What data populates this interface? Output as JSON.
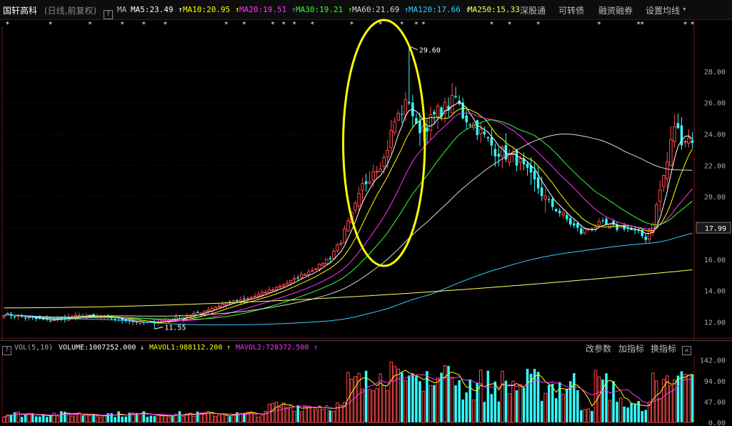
{
  "header": {
    "stock_name": "国轩高科",
    "period": "(日线,前复权)",
    "help": "?",
    "ma_label": "MA",
    "ma": [
      {
        "label": "MA5:23.49",
        "color": "#ffffff",
        "arrow": "↑"
      },
      {
        "label": "MA10:20.95",
        "color": "#ffff00",
        "arrow": "↑"
      },
      {
        "label": "MA20:19.51",
        "color": "#ff33ff",
        "arrow": "↑"
      },
      {
        "label": "MA30:19.21",
        "color": "#33ff33",
        "arrow": "↑"
      },
      {
        "label": "MA60:21.69",
        "color": "#d8d8d8",
        "arrow": "↑"
      },
      {
        "label": "MA120:17.66",
        "color": "#33ccff",
        "arrow": "↑"
      },
      {
        "label": "MA250:15.33",
        "color": "#ffff66",
        "arrow": ""
      }
    ],
    "tabs": [
      "深股通",
      "可转债",
      "融资融券",
      "设置均线"
    ],
    "dropdown_caret": "▾"
  },
  "volume_header": {
    "help": "?",
    "vol_label": "VOL(5,10)",
    "volume": "VOLUME:1007252.000",
    "volume_arrow": "↓",
    "mavol1": "MAVOL1:988112.200",
    "mavol1_arrow": "↑",
    "mavol2": "MAVOL2:728372.500",
    "mavol2_arrow": "↑",
    "buttons": [
      "改参数",
      "加指标",
      "换指标"
    ],
    "close": "✕"
  },
  "chart_data": {
    "type": "candlestick",
    "price_ylim": [
      11.2,
      30.5
    ],
    "price_ticks": [
      "28.00",
      "26.00",
      "24.00",
      "22.00",
      "20.00",
      "18.00",
      "16.00",
      "14.00",
      "12.00"
    ],
    "price_tick_values": [
      28,
      26,
      24,
      22,
      20,
      18,
      16,
      14,
      12
    ],
    "current_price": "17.99",
    "current_price_value": 17.99,
    "high_label": "29.60",
    "high_value": 29.6,
    "low_label": "11.55",
    "low_value": 11.55,
    "volume_ticks": [
      "142.00",
      "94.00",
      "47.00",
      "0.00"
    ],
    "volume_tick_values": [
      142,
      94,
      47,
      0
    ],
    "volume_ylim": [
      0,
      148
    ],
    "ma_colors": {
      "MA5": "#ffffff",
      "MA10": "#ffff00",
      "MA20": "#ff33ff",
      "MA30": "#33ff33",
      "MA60": "#d8d8d8",
      "MA120": "#33ccff",
      "MA250": "#ffff66"
    },
    "up_color": "#ff4a4a",
    "down_color": "#33ffff",
    "annotation_ellipse_color": "#ffff00",
    "ma_close_values": {
      "MA60": 21.69,
      "MA120": 17.66,
      "MA250": 15.33
    },
    "key_closes": [
      [
        0,
        12.5
      ],
      [
        12,
        12.1
      ],
      [
        22,
        12.4
      ],
      [
        32,
        12.2
      ],
      [
        40,
        11.9
      ],
      [
        45,
        12.1
      ],
      [
        52,
        12.4
      ],
      [
        57,
        12.8
      ],
      [
        62,
        13.2
      ],
      [
        67,
        13.4
      ],
      [
        72,
        13.8
      ],
      [
        76,
        14.2
      ],
      [
        80,
        14.6
      ],
      [
        84,
        15.1
      ],
      [
        88,
        15.6
      ],
      [
        91,
        16.2
      ],
      [
        94,
        17.2
      ],
      [
        97,
        18.8
      ],
      [
        100,
        20.6
      ],
      [
        103,
        21.8
      ],
      [
        106,
        22.4
      ],
      [
        109,
        24.8
      ],
      [
        111,
        25.5
      ],
      [
        113,
        26.2
      ],
      [
        115,
        24.3
      ],
      [
        118,
        24.6
      ],
      [
        121,
        25.4
      ],
      [
        124,
        25.8
      ],
      [
        126,
        26.3
      ],
      [
        128,
        25.2
      ],
      [
        131,
        24.6
      ],
      [
        134,
        23.8
      ],
      [
        137,
        23.0
      ],
      [
        140,
        22.7
      ],
      [
        143,
        22.4
      ],
      [
        146,
        21.4
      ],
      [
        149,
        20.6
      ],
      [
        152,
        19.6
      ],
      [
        155,
        19.0
      ],
      [
        158,
        18.3
      ],
      [
        161,
        17.7
      ],
      [
        164,
        18.1
      ],
      [
        167,
        18.2
      ],
      [
        170,
        18.0
      ],
      [
        173,
        18.1
      ],
      [
        176,
        17.7
      ],
      [
        179,
        17.4
      ],
      [
        181,
        18.4
      ],
      [
        183,
        20.4
      ],
      [
        185,
        22.2
      ],
      [
        187,
        24.6
      ],
      [
        189,
        23.7
      ]
    ],
    "star_markers": [
      1,
      13,
      24,
      33,
      39,
      45,
      62,
      67,
      75,
      78,
      81,
      86,
      97,
      105,
      111,
      115,
      117,
      136,
      141,
      149,
      166,
      177,
      178,
      190,
      192
    ]
  }
}
